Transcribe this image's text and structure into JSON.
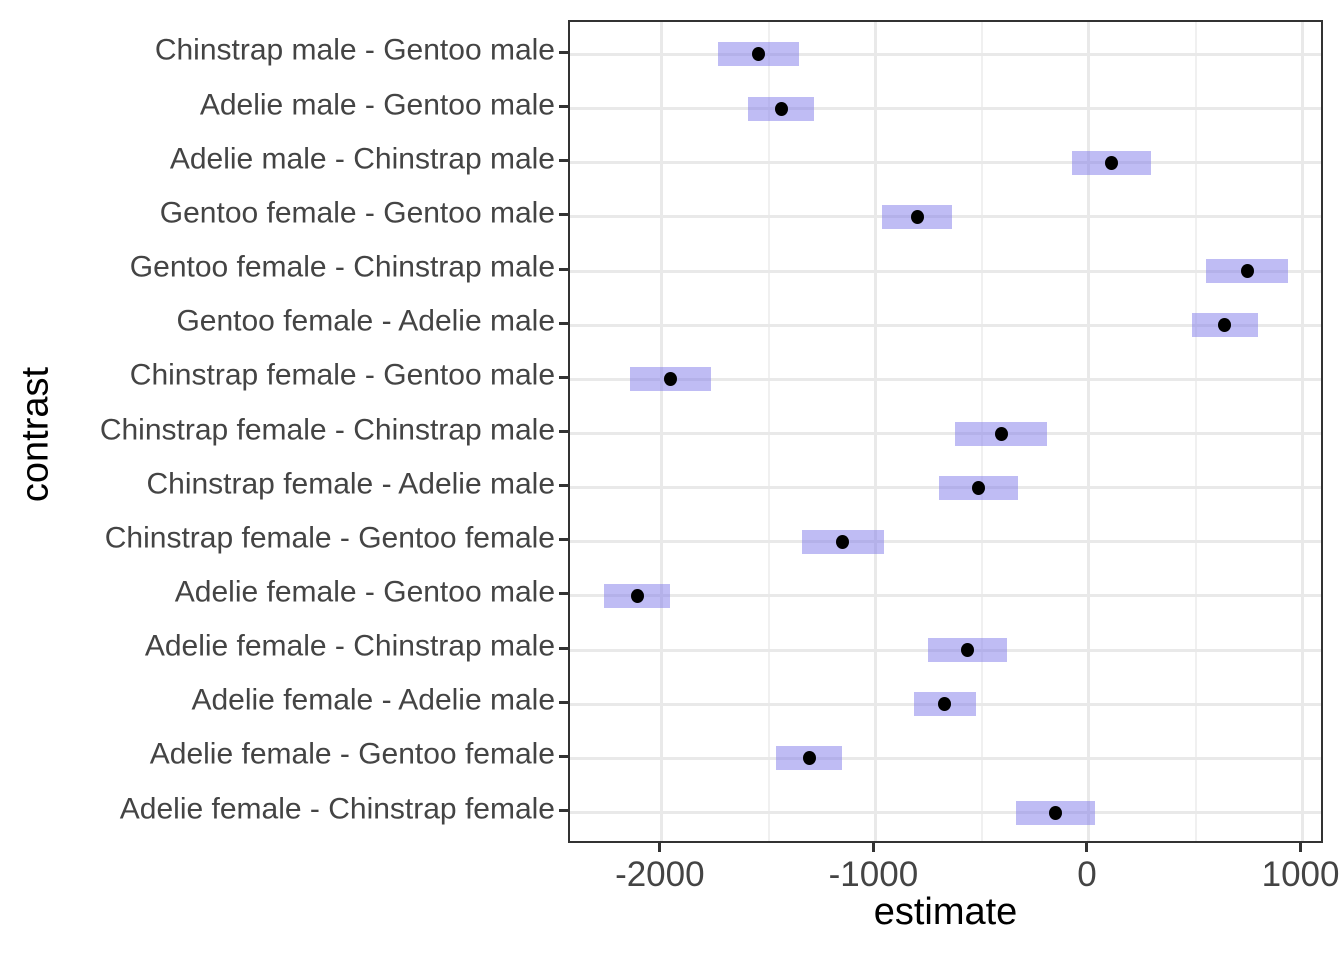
{
  "chart_data": {
    "type": "pointrange",
    "orientation": "horizontal",
    "title": "",
    "xlabel": "estimate",
    "ylabel": "contrast",
    "xlim": [
      -2430,
      1105
    ],
    "x_major_ticks": [
      -2000,
      -1000,
      0,
      1000
    ],
    "x_tick_labels": [
      "-2000",
      "-1000",
      "0",
      "1000"
    ],
    "x_minor_gridlines": [
      -1500,
      -500,
      500
    ],
    "grid": true,
    "legend": false,
    "categories": [
      "Chinstrap male - Gentoo male",
      "Adelie male - Gentoo male",
      "Adelie male - Chinstrap male",
      "Gentoo female - Gentoo male",
      "Gentoo female - Chinstrap male",
      "Gentoo female - Adelie male",
      "Chinstrap female - Gentoo male",
      "Chinstrap female - Chinstrap male",
      "Chinstrap female - Adelie male",
      "Chinstrap female - Gentoo female",
      "Adelie female - Gentoo male",
      "Adelie female - Chinstrap male",
      "Adelie female - Adelie male",
      "Adelie female - Gentoo female",
      "Adelie female - Chinstrap female"
    ],
    "rows": [
      {
        "contrast": "Chinstrap male - Gentoo male",
        "estimate": -1545.8,
        "lower": -1735.8,
        "upper": -1355.8
      },
      {
        "contrast": "Adelie male - Gentoo male",
        "estimate": -1441.3,
        "lower": -1595.4,
        "upper": -1287.2
      },
      {
        "contrast": "Adelie male - Chinstrap male",
        "estimate": 104.5,
        "lower": -79.9,
        "upper": 288.9
      },
      {
        "contrast": "Gentoo female - Gentoo male",
        "estimate": -805.1,
        "lower": -967.9,
        "upper": -642.3
      },
      {
        "contrast": "Gentoo female - Chinstrap male",
        "estimate": 740.7,
        "lower": 549.2,
        "upper": 932.2
      },
      {
        "contrast": "Gentoo female - Adelie male",
        "estimate": 636.2,
        "lower": 480.0,
        "upper": 792.4
      },
      {
        "contrast": "Chinstrap female - Gentoo male",
        "estimate": -1957.6,
        "lower": -2147.6,
        "upper": -1767.6
      },
      {
        "contrast": "Chinstrap female - Chinstrap male",
        "estimate": -411.8,
        "lower": -627.0,
        "upper": -196.6
      },
      {
        "contrast": "Chinstrap female - Adelie male",
        "estimate": -516.3,
        "lower": -700.7,
        "upper": -331.9
      },
      {
        "contrast": "Chinstrap female - Gentoo female",
        "estimate": -1152.5,
        "lower": -1344.0,
        "upper": -961.0
      },
      {
        "contrast": "Adelie female - Gentoo male",
        "estimate": -2116.0,
        "lower": -2270.1,
        "upper": -1961.9
      },
      {
        "contrast": "Adelie female - Chinstrap male",
        "estimate": -570.2,
        "lower": -754.6,
        "upper": -385.8
      },
      {
        "contrast": "Adelie female - Adelie male",
        "estimate": -674.7,
        "lower": -821.5,
        "upper": -527.9
      },
      {
        "contrast": "Adelie female - Gentoo female",
        "estimate": -1310.9,
        "lower": -1467.1,
        "upper": -1154.7
      },
      {
        "contrast": "Adelie female - Chinstrap female",
        "estimate": -158.4,
        "lower": -342.8,
        "upper": 26.0
      }
    ],
    "colors": {
      "band_fill": "#bfbcf5",
      "band_fill_rgba": "rgba(127,121,233,0.5)",
      "point": "#000000",
      "grid_major": "#e9e9e9",
      "grid_minor": "#f0f0f0",
      "panel_border": "#333333",
      "axis_text": "#444444",
      "axis_title": "#000000",
      "background": "#ffffff"
    }
  }
}
